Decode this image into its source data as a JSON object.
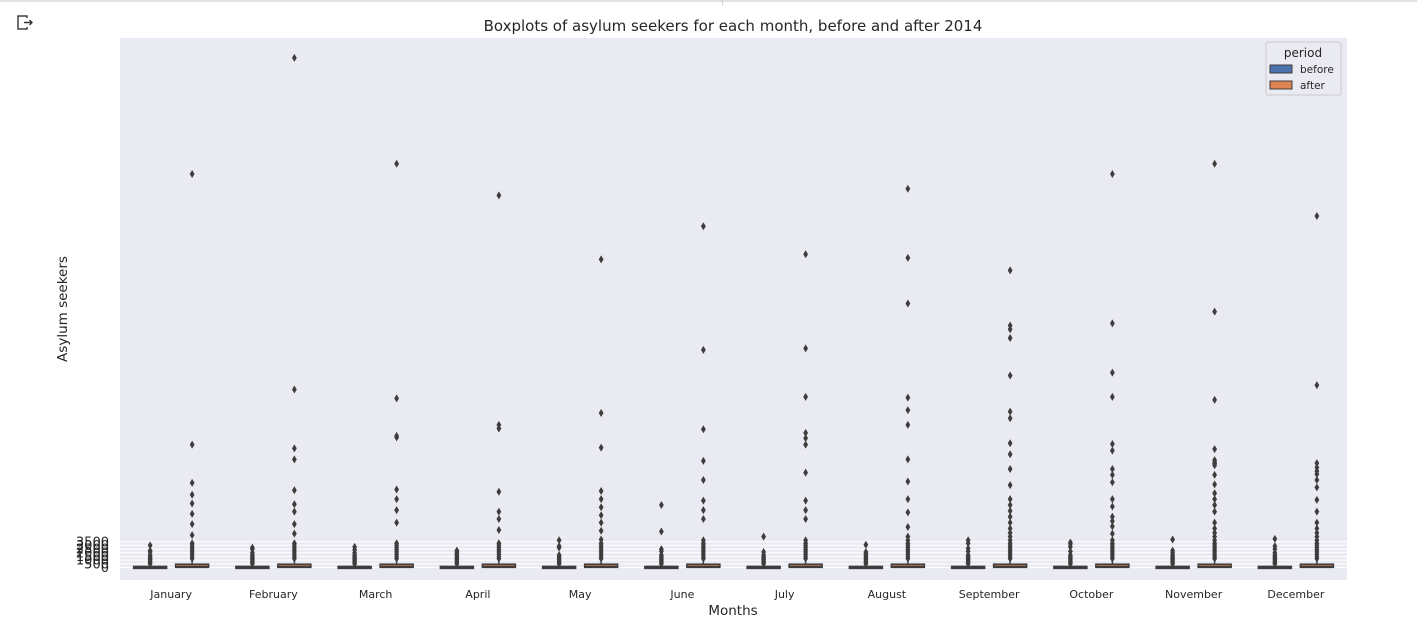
{
  "toolbar": {
    "output_icon": "output-toggle-icon"
  },
  "chart_data": {
    "type": "box",
    "title": "Boxplots of asylum seekers for each month, before and after 2014",
    "xlabel": "Months",
    "ylabel": "Asylum seekers",
    "categories": [
      "January",
      "February",
      "March",
      "April",
      "May",
      "June",
      "July",
      "August",
      "September",
      "October",
      "November",
      "December"
    ],
    "yticks": [
      0,
      500,
      1000,
      1500,
      2000,
      2500,
      3000,
      3500
    ],
    "ylim": [
      -1700,
      72000
    ],
    "grid": true,
    "legend": {
      "title": "period",
      "placement": "top-right",
      "entries": [
        {
          "name": "before",
          "color": "#4c72b0"
        },
        {
          "name": "after",
          "color": "#dd8452"
        }
      ]
    },
    "series": [
      {
        "name": "before",
        "color": "#4c72b0",
        "boxes": [
          {
            "q1": 10,
            "median": 40,
            "q3": 150,
            "whisker_low": 0,
            "whisker_high": 360,
            "outliers": [
              500,
              700,
              900,
              1100,
              1300,
              1500,
              1700,
              2100,
              2300,
              3000
            ]
          },
          {
            "q1": 10,
            "median": 40,
            "q3": 150,
            "whisker_low": 0,
            "whisker_high": 360,
            "outliers": [
              500,
              700,
              900,
              1100,
              1300,
              1500,
              1700,
              2000,
              2500,
              2700
            ]
          },
          {
            "q1": 10,
            "median": 40,
            "q3": 150,
            "whisker_low": 0,
            "whisker_high": 360,
            "outliers": [
              500,
              700,
              900,
              1100,
              1300,
              1500,
              1700,
              2000,
              2400,
              2800
            ]
          },
          {
            "q1": 10,
            "median": 40,
            "q3": 150,
            "whisker_low": 0,
            "whisker_high": 360,
            "outliers": [
              500,
              700,
              900,
              1100,
              1300,
              1500,
              1700,
              1900,
              2100,
              2300
            ]
          },
          {
            "q1": 10,
            "median": 40,
            "q3": 150,
            "whisker_low": 0,
            "whisker_high": 360,
            "outliers": [
              500,
              700,
              900,
              1100,
              1300,
              1500,
              1700,
              2700,
              2900,
              3700
            ]
          },
          {
            "q1": 10,
            "median": 40,
            "q3": 150,
            "whisker_low": 0,
            "whisker_high": 360,
            "outliers": [
              500,
              700,
              900,
              1100,
              1300,
              1500,
              1700,
              2200,
              2500,
              4900,
              8500
            ]
          },
          {
            "q1": 10,
            "median": 40,
            "q3": 150,
            "whisker_low": 0,
            "whisker_high": 360,
            "outliers": [
              500,
              700,
              900,
              1100,
              1300,
              1500,
              1700,
              2100,
              4200
            ]
          },
          {
            "q1": 10,
            "median": 40,
            "q3": 150,
            "whisker_low": 0,
            "whisker_high": 360,
            "outliers": [
              500,
              700,
              900,
              1100,
              1300,
              1500,
              1700,
              1900,
              2100,
              3100
            ]
          },
          {
            "q1": 10,
            "median": 40,
            "q3": 150,
            "whisker_low": 0,
            "whisker_high": 360,
            "outliers": [
              500,
              700,
              900,
              1100,
              1300,
              1500,
              1700,
              2200,
              2600,
              3300,
              3700
            ]
          },
          {
            "q1": 10,
            "median": 40,
            "q3": 150,
            "whisker_low": 0,
            "whisker_high": 360,
            "outliers": [
              500,
              700,
              900,
              1100,
              1300,
              1500,
              1700,
              2200,
              2800,
              3200,
              3400
            ]
          },
          {
            "q1": 10,
            "median": 40,
            "q3": 150,
            "whisker_low": 0,
            "whisker_high": 360,
            "outliers": [
              500,
              700,
              900,
              1100,
              1300,
              1500,
              1700,
              2000,
              2300,
              3800
            ]
          },
          {
            "q1": 10,
            "median": 40,
            "q3": 150,
            "whisker_low": 0,
            "whisker_high": 360,
            "outliers": [
              500,
              700,
              900,
              1100,
              1300,
              1500,
              1700,
              2000,
              2500,
              2900,
              3900
            ]
          }
        ]
      },
      {
        "name": "after",
        "color": "#dd8452",
        "boxes": [
          {
            "q1": 20,
            "median": 150,
            "q3": 450,
            "whisker_low": 0,
            "whisker_high": 1000,
            "outliers": [
              1200,
              1500,
              1800,
              2100,
              2400,
              2700,
              3000,
              3300,
              4400,
              5900,
              7300,
              8700,
              9900,
              11500,
              16700,
              53500
            ]
          },
          {
            "q1": 20,
            "median": 150,
            "q3": 450,
            "whisker_low": 0,
            "whisker_high": 1000,
            "outliers": [
              1200,
              1500,
              1800,
              2100,
              2400,
              2700,
              3000,
              3300,
              4600,
              5900,
              7600,
              8600,
              10500,
              14700,
              16200,
              24200,
              69300
            ]
          },
          {
            "q1": 20,
            "median": 150,
            "q3": 450,
            "whisker_low": 0,
            "whisker_high": 1000,
            "outliers": [
              1200,
              1500,
              1800,
              2100,
              2400,
              2700,
              3000,
              3300,
              6100,
              7800,
              9300,
              10600,
              17700,
              17900,
              23000,
              54900
            ]
          },
          {
            "q1": 20,
            "median": 150,
            "q3": 450,
            "whisker_low": 0,
            "whisker_high": 1000,
            "outliers": [
              1200,
              1500,
              1800,
              2100,
              2400,
              2700,
              3000,
              3300,
              5100,
              6600,
              7600,
              10300,
              18900,
              19400,
              50600
            ]
          },
          {
            "q1": 20,
            "median": 150,
            "q3": 450,
            "whisker_low": 0,
            "whisker_high": 1000,
            "outliers": [
              1200,
              1500,
              1800,
              2100,
              2400,
              2700,
              3000,
              3300,
              3800,
              5000,
              6100,
              7100,
              8200,
              9300,
              10400,
              16300,
              21000,
              41900
            ]
          },
          {
            "q1": 20,
            "median": 150,
            "q3": 450,
            "whisker_low": 0,
            "whisker_high": 1000,
            "outliers": [
              1200,
              1500,
              1800,
              2100,
              2400,
              2700,
              3000,
              3300,
              3700,
              6600,
              7800,
              9100,
              11900,
              14500,
              18800,
              29600,
              46400
            ]
          },
          {
            "q1": 20,
            "median": 150,
            "q3": 450,
            "whisker_low": 0,
            "whisker_high": 1000,
            "outliers": [
              1200,
              1500,
              1800,
              2100,
              2400,
              2700,
              3000,
              3300,
              3700,
              6600,
              7800,
              9100,
              12900,
              16700,
              17600,
              18300,
              23200,
              29800,
              42600
            ]
          },
          {
            "q1": 20,
            "median": 150,
            "q3": 450,
            "whisker_low": 0,
            "whisker_high": 1000,
            "outliers": [
              1200,
              1500,
              1800,
              2100,
              2400,
              2700,
              3000,
              3300,
              3700,
              4200,
              5500,
              7500,
              9300,
              11700,
              14700,
              19400,
              21400,
              23100,
              35900,
              42100,
              51500
            ]
          },
          {
            "q1": 20,
            "median": 150,
            "q3": 450,
            "whisker_low": 0,
            "whisker_high": 1000,
            "outliers": [
              1200,
              1500,
              1800,
              2100,
              2400,
              2700,
              3000,
              3300,
              3700,
              4200,
              4700,
              5300,
              6100,
              6900,
              7700,
              8500,
              9300,
              11200,
              13400,
              15400,
              16900,
              20300,
              21200,
              26100,
              31200,
              32400,
              32900,
              40400
            ]
          },
          {
            "q1": 20,
            "median": 150,
            "q3": 450,
            "whisker_low": 0,
            "whisker_high": 1000,
            "outliers": [
              1200,
              1500,
              1800,
              2100,
              2400,
              2700,
              3000,
              3300,
              3700,
              4600,
              5600,
              6300,
              6900,
              8300,
              9300,
              11600,
              12600,
              13400,
              15900,
              16800,
              23200,
              26500,
              33200,
              53500
            ]
          },
          {
            "q1": 20,
            "median": 150,
            "q3": 450,
            "whisker_low": 0,
            "whisker_high": 1000,
            "outliers": [
              1200,
              1500,
              1800,
              2100,
              2400,
              2700,
              3000,
              3300,
              3700,
              4200,
              4700,
              5300,
              6100,
              7600,
              8500,
              9300,
              10100,
              11300,
              12600,
              13900,
              14100,
              14300,
              14600,
              16100,
              22800,
              34800,
              54900
            ]
          },
          {
            "q1": 20,
            "median": 150,
            "q3": 450,
            "whisker_low": 0,
            "whisker_high": 1000,
            "outliers": [
              1200,
              1500,
              1800,
              2100,
              2400,
              2700,
              3000,
              3300,
              3700,
              4200,
              4700,
              5300,
              6100,
              7600,
              9200,
              10900,
              11900,
              12700,
              13100,
              13600,
              14200,
              24800,
              47800
            ]
          }
        ]
      }
    ]
  }
}
